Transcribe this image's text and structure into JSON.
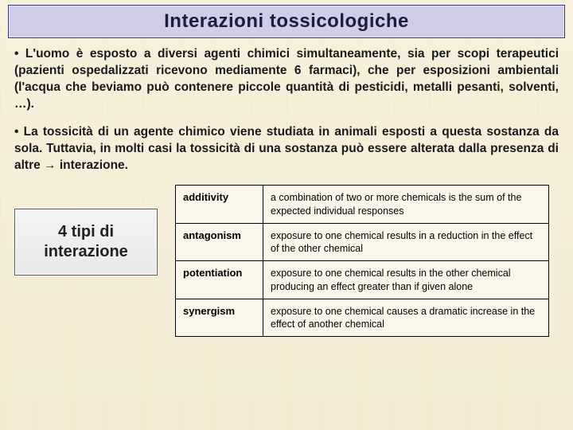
{
  "title": "Interazioni tossicologiche",
  "para1": "• L'uomo è esposto a diversi agenti chimici simultaneamente, sia per scopi terapeutici (pazienti ospedalizzati ricevono mediamente 6 farmaci), che per esposizioni ambientali (l'acqua che beviamo può contenere piccole quantità di pesticidi, metalli pesanti, solventi, …).",
  "para2": "• La tossicità di un agente chimico viene studiata in animali esposti a questa sostanza da sola. Tuttavia, in molti casi la tossicità di una sostanza può essere alterata dalla presenza di altre → interazione.",
  "callout": "4 tipi di interazione",
  "table": {
    "rows": [
      {
        "term": "additivity",
        "def": "a combination of two or more chemicals is the sum of the expected individual responses"
      },
      {
        "term": "antagonism",
        "def": "exposure to one chemical results in a reduction in the effect of the other chemical"
      },
      {
        "term": "potentiation",
        "def": "exposure to one chemical results in the other chemical producing an effect greater than if given alone"
      },
      {
        "term": "synergism",
        "def": "exposure to one chemical causes a dramatic increase in the effect of another chemical"
      }
    ]
  },
  "colors": {
    "title_bg": "#cfcde8",
    "title_border": "#3b3a6a",
    "page_bg": "#f5eed8",
    "table_border": "#000000"
  }
}
